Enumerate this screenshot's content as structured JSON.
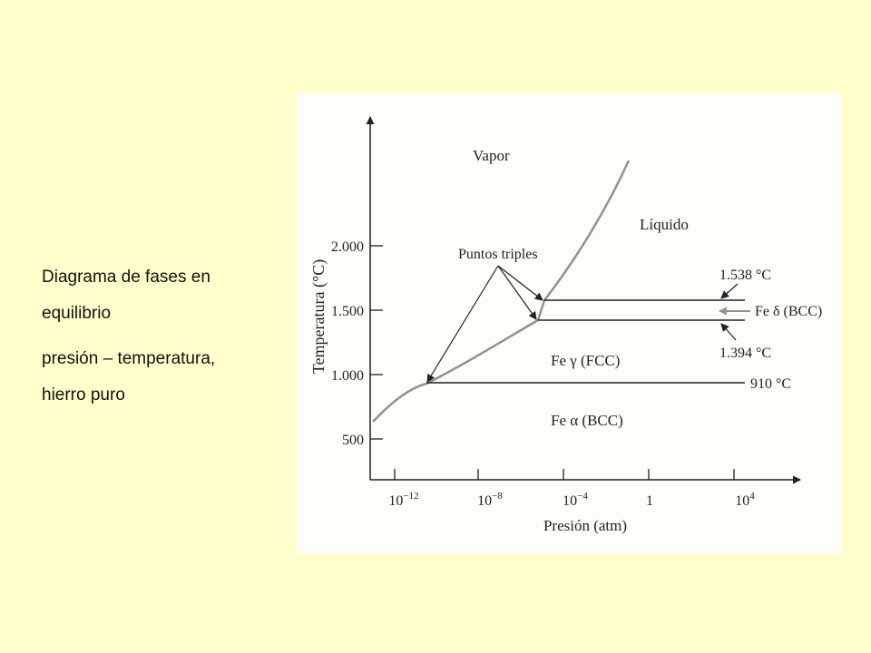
{
  "caption": {
    "line1": "Diagrama de fases en",
    "line2": "equilibrio",
    "line3": "presión – temperatura,",
    "line4": "hierro puro"
  },
  "colors": {
    "slide_background": "#ffffcc",
    "scan_background": "#fdfdfa",
    "boundary_line": "#9a8f8f",
    "ink": "#222222"
  },
  "diagram": {
    "y_axis_label": "Temperatura (°C)",
    "x_axis_label": "Presión (atm)",
    "y_ticks": [
      "2.000",
      "1.500",
      "1.000",
      "500"
    ],
    "x_ticks": [
      {
        "base": "10",
        "exp": "−12"
      },
      {
        "base": "10",
        "exp": "−8"
      },
      {
        "base": "10",
        "exp": "−4"
      },
      {
        "base": "1",
        "exp": ""
      },
      {
        "base": "10",
        "exp": "4"
      }
    ],
    "regions": {
      "vapor": "Vapor",
      "liquido": "Líquido",
      "fe_gamma": "Fe γ (FCC)",
      "fe_alpha": "Fe α (BCC)",
      "fe_delta": "Fe δ (BCC)"
    },
    "annotations": {
      "triple_points": "Puntos triples",
      "t_1538": "1.538 °C",
      "t_1394": "1.394 °C",
      "t_910": "910 °C"
    }
  }
}
